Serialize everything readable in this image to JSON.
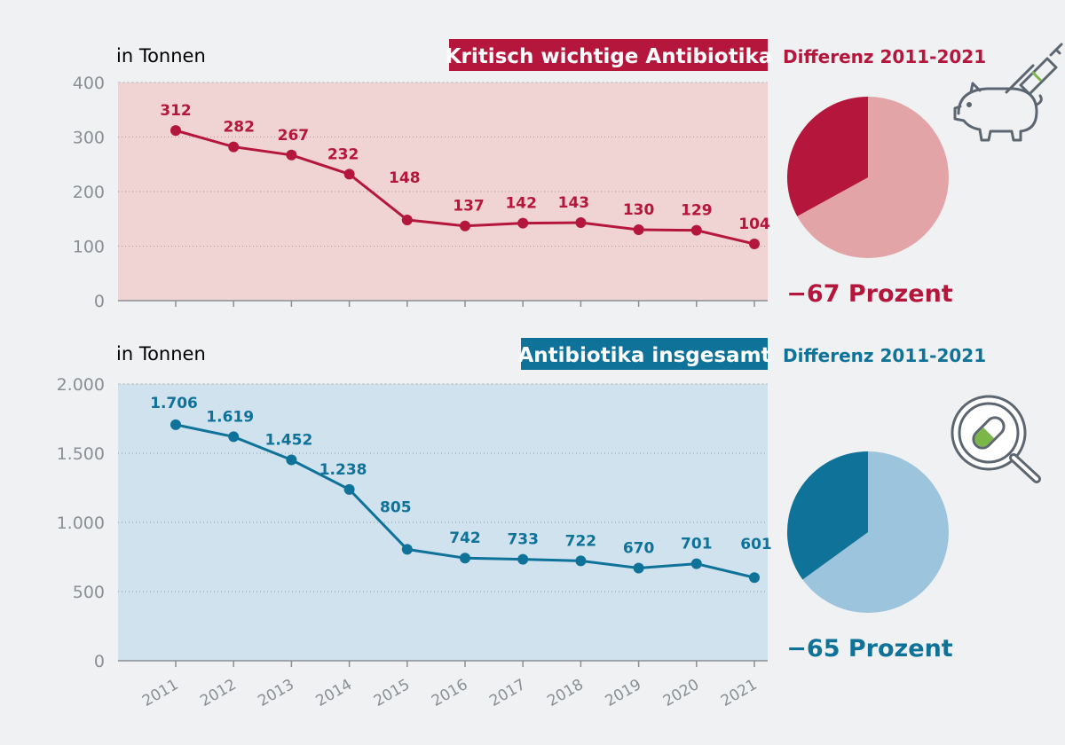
{
  "colors": {
    "red": "#b5173c",
    "red_bg": "#f0d3d3",
    "red_light": "#e2a4a6",
    "blue": "#0f7298",
    "blue_bg": "#cfe2ee",
    "blue_light": "#9cc4dc",
    "axis": "#8a8f96",
    "background": "#f0f1f3"
  },
  "chart_data": [
    {
      "type": "line",
      "title": "Kritisch wichtige Antibiotika",
      "ylabel": "in Tonnen",
      "x": [
        "2011",
        "2012",
        "2013",
        "2014",
        "2015",
        "2016",
        "2017",
        "2018",
        "2019",
        "2020",
        "2021"
      ],
      "values": [
        312,
        282,
        267,
        232,
        148,
        137,
        142,
        143,
        130,
        129,
        104
      ],
      "labels": [
        "312",
        "282",
        "267",
        "232",
        "148",
        "137",
        "142",
        "143",
        "130",
        "129",
        "104"
      ],
      "ylim": [
        0,
        400
      ],
      "yticks": [
        0,
        100,
        200,
        300,
        400
      ],
      "yticklabels": [
        "0",
        "100",
        "200",
        "300",
        "400"
      ],
      "grid": true
    },
    {
      "type": "line",
      "title": "Antibiotika insgesamt",
      "ylabel": "in Tonnen",
      "x": [
        "2011",
        "2012",
        "2013",
        "2014",
        "2015",
        "2016",
        "2017",
        "2018",
        "2019",
        "2020",
        "2021"
      ],
      "values": [
        1706,
        1619,
        1452,
        1238,
        805,
        742,
        733,
        722,
        670,
        701,
        601
      ],
      "labels": [
        "1.706",
        "1.619",
        "1.452",
        "1.238",
        "805",
        "742",
        "733",
        "722",
        "670",
        "701",
        "601"
      ],
      "ylim": [
        0,
        2000
      ],
      "yticks": [
        0,
        500,
        1000,
        1500,
        2000
      ],
      "yticklabels": [
        "0",
        "500",
        "1.000",
        "1.500",
        "2.000"
      ],
      "grid": true
    },
    {
      "type": "pie",
      "title": "Differenz 2011-2021",
      "values": [
        33,
        67
      ],
      "annotation": "−67 Prozent"
    },
    {
      "type": "pie",
      "title": "Differenz 2011-2021",
      "values": [
        35,
        65
      ],
      "annotation": "−65 Prozent"
    }
  ],
  "icons": {
    "top": "pig-syringe-icon",
    "bottom": "pill-magnifier-icon"
  }
}
